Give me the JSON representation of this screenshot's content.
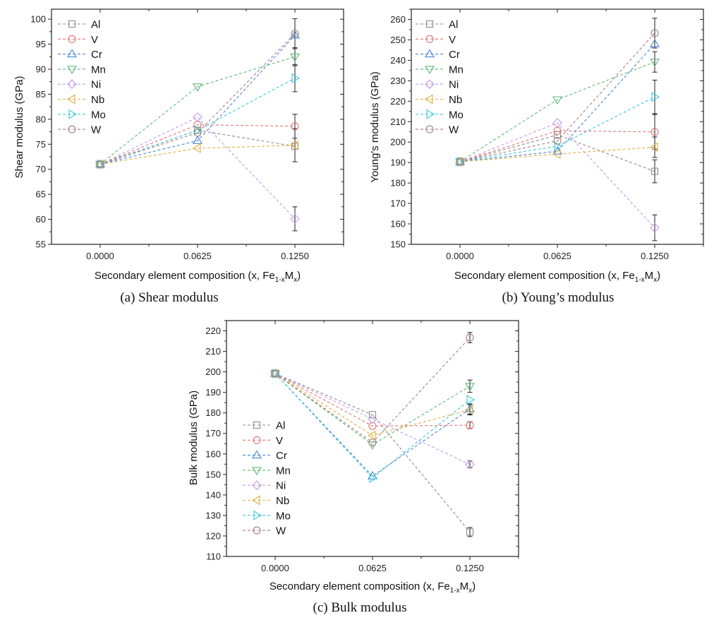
{
  "figure": {
    "series_styles": [
      {
        "name": "Al",
        "color": "#8c8c8c",
        "marker": "square"
      },
      {
        "name": "V",
        "color": "#e57373",
        "marker": "circle"
      },
      {
        "name": "Cr",
        "color": "#4a86d8",
        "marker": "triangle-up"
      },
      {
        "name": "Mn",
        "color": "#5cba78",
        "marker": "triangle-down"
      },
      {
        "name": "Ni",
        "color": "#c39be6",
        "marker": "diamond"
      },
      {
        "name": "Nb",
        "color": "#e0b040",
        "marker": "triangle-left"
      },
      {
        "name": "Mo",
        "color": "#3cc8d8",
        "marker": "triangle-right"
      },
      {
        "name": "W",
        "color": "#a88080",
        "marker": "circle"
      }
    ],
    "error_bar_color": "#333333"
  },
  "chart_data": [
    {
      "id": "a",
      "type": "line",
      "caption": "(a) Shear modulus",
      "title": "",
      "xlabel_main": "Secondary element composition (x, Fe",
      "xlabel_sub1": "1-x",
      "xlabel_mid": "M",
      "xlabel_sub2": "x",
      "xlabel_end": ")",
      "ylabel": "Shear modulus (GPa)",
      "x": [
        0.0,
        0.0625,
        0.125
      ],
      "x_tick_labels": [
        "0.0000",
        "0.0625",
        "0.1250"
      ],
      "xlim": [
        -0.03125,
        0.15625
      ],
      "ylim": [
        55,
        102
      ],
      "y_ticks": [
        55,
        60,
        65,
        70,
        75,
        80,
        85,
        90,
        95,
        100
      ],
      "legend_position": "top-left",
      "grid": false,
      "series": [
        {
          "name": "Al",
          "values": [
            71.0,
            77.8,
            74.6
          ],
          "errors": [
            0,
            0,
            0
          ]
        },
        {
          "name": "V",
          "values": [
            71.0,
            78.9,
            78.6
          ],
          "errors": [
            0,
            0,
            2.4
          ]
        },
        {
          "name": "Cr",
          "values": [
            71.0,
            75.7,
            96.8
          ],
          "errors": [
            0,
            0,
            0
          ]
        },
        {
          "name": "Mn",
          "values": [
            71.0,
            86.5,
            92.5
          ],
          "errors": [
            0,
            0,
            1.8
          ]
        },
        {
          "name": "Ni",
          "values": [
            71.0,
            80.4,
            60.1
          ],
          "errors": [
            0,
            0,
            2.4
          ]
        },
        {
          "name": "Nb",
          "values": [
            71.0,
            74.2,
            74.8
          ],
          "errors": [
            0,
            0,
            3.3
          ]
        },
        {
          "name": "Mo",
          "values": [
            71.0,
            77.8,
            88.2
          ],
          "errors": [
            0,
            0,
            2.7
          ]
        },
        {
          "name": "W",
          "values": [
            71.0,
            77.3,
            97.1
          ],
          "errors": [
            0,
            0,
            3.0
          ]
        }
      ]
    },
    {
      "id": "b",
      "type": "line",
      "caption": "(b) Young’s modulus",
      "title": "",
      "xlabel_main": "Secondary element composition (x, Fe",
      "xlabel_sub1": "1-x",
      "xlabel_mid": "M",
      "xlabel_sub2": "x",
      "xlabel_end": ")",
      "ylabel": "Young's modulus (GPa)",
      "x": [
        0.0,
        0.0625,
        0.125
      ],
      "x_tick_labels": [
        "0.0000",
        "0.0625",
        "0.1250"
      ],
      "xlim": [
        -0.03125,
        0.15625
      ],
      "ylim": [
        150,
        265
      ],
      "y_ticks": [
        150,
        160,
        170,
        180,
        190,
        200,
        210,
        220,
        230,
        240,
        250,
        260
      ],
      "legend_position": "top-left",
      "grid": false,
      "series": [
        {
          "name": "Al",
          "values": [
            190.4,
            203.5,
            185.7
          ],
          "errors": [
            0,
            0,
            5.6
          ]
        },
        {
          "name": "V",
          "values": [
            190.4,
            205.5,
            205.0
          ],
          "errors": [
            0,
            0,
            8.5
          ]
        },
        {
          "name": "Cr",
          "values": [
            190.4,
            195.5,
            248.0
          ],
          "errors": [
            0,
            0,
            0
          ]
        },
        {
          "name": "Mn",
          "values": [
            190.4,
            220.8,
            239.2
          ],
          "errors": [
            0,
            0,
            5.0
          ]
        },
        {
          "name": "Ni",
          "values": [
            190.4,
            209.4,
            158.1
          ],
          "errors": [
            0,
            0,
            6.3
          ]
        },
        {
          "name": "Nb",
          "values": [
            190.4,
            194.2,
            197.5
          ],
          "errors": [
            0,
            0,
            5.0
          ]
        },
        {
          "name": "Mo",
          "values": [
            190.4,
            198.0,
            222.1
          ],
          "errors": [
            0,
            0,
            8.2
          ]
        },
        {
          "name": "W",
          "values": [
            190.4,
            200.6,
            253.3
          ],
          "errors": [
            0,
            0,
            7.3
          ]
        }
      ]
    },
    {
      "id": "c",
      "type": "line",
      "caption": "(c) Bulk modulus",
      "title": "",
      "xlabel_main": "Secondary element composition (x, Fe",
      "xlabel_sub1": "1-x",
      "xlabel_mid": "M",
      "xlabel_sub2": "x",
      "xlabel_end": ")",
      "ylabel": "Bulk modulus (GPa)",
      "x": [
        0.0,
        0.0625,
        0.125
      ],
      "x_tick_labels": [
        "0.0000",
        "0.0625",
        "0.1250"
      ],
      "xlim": [
        -0.03125,
        0.15625
      ],
      "ylim": [
        110,
        225
      ],
      "y_ticks": [
        110,
        120,
        130,
        140,
        150,
        160,
        170,
        180,
        190,
        200,
        210,
        220
      ],
      "legend_position": "bottom-left",
      "grid": false,
      "series": [
        {
          "name": "Al",
          "values": [
            199.2,
            179.1,
            121.9
          ],
          "errors": [
            0,
            0,
            2.2
          ]
        },
        {
          "name": "V",
          "values": [
            199.2,
            173.6,
            174.0
          ],
          "errors": [
            0,
            0,
            1.7
          ]
        },
        {
          "name": "Cr",
          "values": [
            199.2,
            149.2,
            181.9
          ],
          "errors": [
            0,
            0,
            2.5
          ]
        },
        {
          "name": "Mn",
          "values": [
            199.2,
            164.5,
            193.0
          ],
          "errors": [
            0,
            0,
            3.0
          ]
        },
        {
          "name": "Ni",
          "values": [
            199.2,
            177.0,
            154.9
          ],
          "errors": [
            0,
            0,
            1.7
          ]
        },
        {
          "name": "Nb",
          "values": [
            199.2,
            169.0,
            181.5
          ],
          "errors": [
            0,
            0,
            2.5
          ]
        },
        {
          "name": "Mo",
          "values": [
            199.2,
            148.3,
            186.4
          ],
          "errors": [
            0,
            0,
            0
          ]
        },
        {
          "name": "W",
          "values": [
            199.2,
            165.6,
            216.7
          ],
          "errors": [
            0,
            0,
            2.5
          ]
        }
      ]
    }
  ]
}
